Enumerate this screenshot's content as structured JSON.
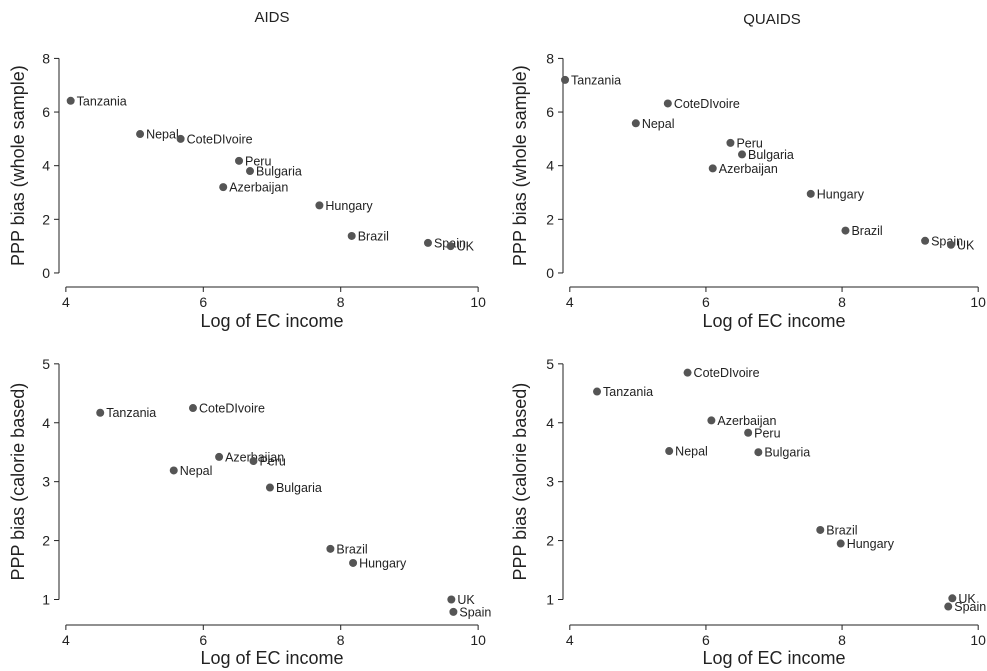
{
  "chart_data": [
    {
      "type": "scatter",
      "title": "AIDS",
      "xlabel": "Log of EC income",
      "ylabel": "PPP bias (whole sample)",
      "xlim": [
        3.9,
        10.1
      ],
      "ylim": [
        -0.3,
        8.5
      ],
      "xticks": [
        4,
        6,
        8,
        10
      ],
      "yticks": [
        0,
        2,
        4,
        6,
        8
      ],
      "grid": false,
      "points": [
        {
          "label": "Tanzania",
          "x": 4.07,
          "y": 6.42
        },
        {
          "label": "Nepal",
          "x": 5.08,
          "y": 5.18
        },
        {
          "label": "CoteDIvoire",
          "x": 5.67,
          "y": 5.0
        },
        {
          "label": "Peru",
          "x": 6.52,
          "y": 4.18
        },
        {
          "label": "Bulgaria",
          "x": 6.68,
          "y": 3.8
        },
        {
          "label": "Azerbaijan",
          "x": 6.29,
          "y": 3.2
        },
        {
          "label": "Hungary",
          "x": 7.69,
          "y": 2.52
        },
        {
          "label": "Brazil",
          "x": 8.16,
          "y": 1.38
        },
        {
          "label": "Spain",
          "x": 9.27,
          "y": 1.12
        },
        {
          "label": "UK",
          "x": 9.6,
          "y": 1.0
        }
      ]
    },
    {
      "type": "scatter",
      "title": "QUAIDS",
      "xlabel": "Log of EC income",
      "ylabel": "PPP bias (whole sample)",
      "xlim": [
        3.9,
        10.1
      ],
      "ylim": [
        -0.3,
        8.5
      ],
      "xticks": [
        4,
        6,
        8,
        10
      ],
      "yticks": [
        0,
        2,
        4,
        6,
        8
      ],
      "grid": false,
      "points": [
        {
          "label": "Tanzania",
          "x": 3.93,
          "y": 7.2
        },
        {
          "label": "CoteDIvoire",
          "x": 5.44,
          "y": 6.32
        },
        {
          "label": "Nepal",
          "x": 4.97,
          "y": 5.58
        },
        {
          "label": "Peru",
          "x": 6.36,
          "y": 4.85
        },
        {
          "label": "Bulgaria",
          "x": 6.53,
          "y": 4.42
        },
        {
          "label": "Azerbaijan",
          "x": 6.1,
          "y": 3.9
        },
        {
          "label": "Hungary",
          "x": 7.54,
          "y": 2.95
        },
        {
          "label": "Brazil",
          "x": 8.05,
          "y": 1.58
        },
        {
          "label": "Spain",
          "x": 9.22,
          "y": 1.2
        },
        {
          "label": "UK",
          "x": 9.6,
          "y": 1.05
        }
      ]
    },
    {
      "type": "scatter",
      "title": "",
      "xlabel": "Log of EC income",
      "ylabel": "PPP bias (calorie based)",
      "xlim": [
        3.9,
        10.1
      ],
      "ylim": [
        0.55,
        5.15
      ],
      "xticks": [
        4,
        6,
        8,
        10
      ],
      "yticks": [
        1,
        2,
        3,
        4,
        5
      ],
      "grid": false,
      "points": [
        {
          "label": "Tanzania",
          "x": 4.5,
          "y": 4.17
        },
        {
          "label": "CoteDIvoire",
          "x": 5.85,
          "y": 4.25
        },
        {
          "label": "Azerbaijan",
          "x": 6.23,
          "y": 3.42
        },
        {
          "label": "Peru",
          "x": 6.73,
          "y": 3.35
        },
        {
          "label": "Nepal",
          "x": 5.57,
          "y": 3.19
        },
        {
          "label": "Bulgaria",
          "x": 6.97,
          "y": 2.9
        },
        {
          "label": "Brazil",
          "x": 7.85,
          "y": 1.86
        },
        {
          "label": "Hungary",
          "x": 8.18,
          "y": 1.62
        },
        {
          "label": "UK",
          "x": 9.61,
          "y": 1.0
        },
        {
          "label": "Spain",
          "x": 9.64,
          "y": 0.79
        }
      ]
    },
    {
      "type": "scatter",
      "title": "",
      "xlabel": "Log of EC income",
      "ylabel": "PPP bias (calorie based)",
      "xlim": [
        3.9,
        10.1
      ],
      "ylim": [
        0.55,
        5.15
      ],
      "xticks": [
        4,
        6,
        8,
        10
      ],
      "yticks": [
        1,
        2,
        3,
        4,
        5
      ],
      "grid": false,
      "points": [
        {
          "label": "CoteDIvoire",
          "x": 5.73,
          "y": 4.85
        },
        {
          "label": "Tanzania",
          "x": 4.4,
          "y": 4.53
        },
        {
          "label": "Azerbaijan",
          "x": 6.08,
          "y": 4.04
        },
        {
          "label": "Peru",
          "x": 6.62,
          "y": 3.83
        },
        {
          "label": "Nepal",
          "x": 5.46,
          "y": 3.52
        },
        {
          "label": "Bulgaria",
          "x": 6.77,
          "y": 3.5
        },
        {
          "label": "Brazil",
          "x": 7.68,
          "y": 2.18
        },
        {
          "label": "Hungary",
          "x": 7.98,
          "y": 1.95
        },
        {
          "label": "UK",
          "x": 9.62,
          "y": 1.02
        },
        {
          "label": "Spain",
          "x": 9.56,
          "y": 0.88
        }
      ]
    }
  ]
}
